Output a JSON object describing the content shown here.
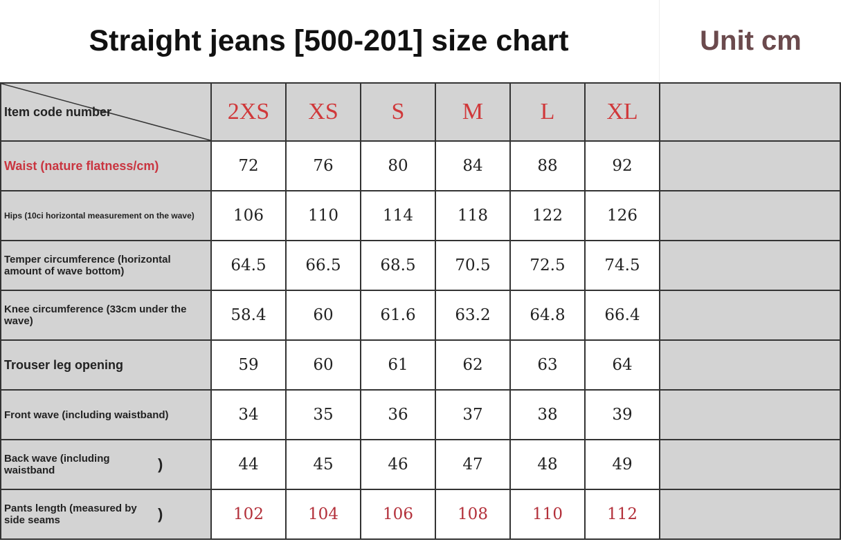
{
  "title": "Straight jeans [500-201] size chart",
  "unit": "Unit cm",
  "header_label": "Item code number",
  "sizes": [
    "2XS",
    "XS",
    "S",
    "M",
    "L",
    "XL"
  ],
  "rows": [
    {
      "label": "Waist (nature flatness/cm)",
      "values": [
        "72",
        "76",
        "80",
        "84",
        "88",
        "92"
      ]
    },
    {
      "label": "Hips (10ci horizontal measurement on the wave)",
      "values": [
        "106",
        "110",
        "114",
        "118",
        "122",
        "126"
      ]
    },
    {
      "label": "Temper circumference (horizontal amount of wave bottom)",
      "values": [
        "64.5",
        "66.5",
        "68.5",
        "70.5",
        "72.5",
        "74.5"
      ]
    },
    {
      "label": "Knee circumference (33cm under the wave)",
      "values": [
        "58.4",
        "60",
        "61.6",
        "63.2",
        "64.8",
        "66.4"
      ]
    },
    {
      "label": "Trouser leg opening",
      "values": [
        "59",
        "60",
        "61",
        "62",
        "63",
        "64"
      ]
    },
    {
      "label": "Front wave (including waistband)",
      "values": [
        "34",
        "35",
        "36",
        "37",
        "38",
        "39"
      ]
    },
    {
      "label": "Back wave (including waistband",
      "suffix": ")",
      "values": [
        "44",
        "45",
        "46",
        "47",
        "48",
        "49"
      ]
    },
    {
      "label": "Pants length (measured by side seams",
      "suffix": ")",
      "values": [
        "102",
        "104",
        "106",
        "108",
        "110",
        "112"
      ]
    }
  ],
  "colors": {
    "size_header": "#d0383a",
    "waist_label": "#c93540",
    "pants_length_values": "#b3303a",
    "label_bg": "#d3d3d3",
    "unit": "#6b4a4d"
  }
}
